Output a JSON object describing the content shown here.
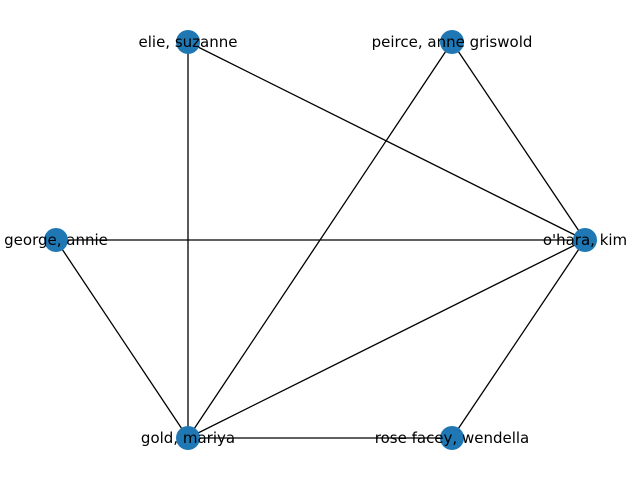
{
  "graph": {
    "node_color": "#1f77b4",
    "edge_color": "#000000",
    "nodes": [
      {
        "id": "elie",
        "label": "elie, suzanne"
      },
      {
        "id": "peirce",
        "label": "peirce, anne griswold"
      },
      {
        "id": "george",
        "label": "george, annie"
      },
      {
        "id": "ohara",
        "label": "o'hara, kim"
      },
      {
        "id": "gold",
        "label": "gold, mariya"
      },
      {
        "id": "rose",
        "label": "rose facey, wendella"
      }
    ],
    "edges": [
      [
        "elie",
        "gold"
      ],
      [
        "elie",
        "ohara"
      ],
      [
        "peirce",
        "gold"
      ],
      [
        "peirce",
        "ohara"
      ],
      [
        "george",
        "ohara"
      ],
      [
        "george",
        "gold"
      ],
      [
        "gold",
        "ohara"
      ],
      [
        "gold",
        "rose"
      ],
      [
        "rose",
        "ohara"
      ]
    ]
  }
}
